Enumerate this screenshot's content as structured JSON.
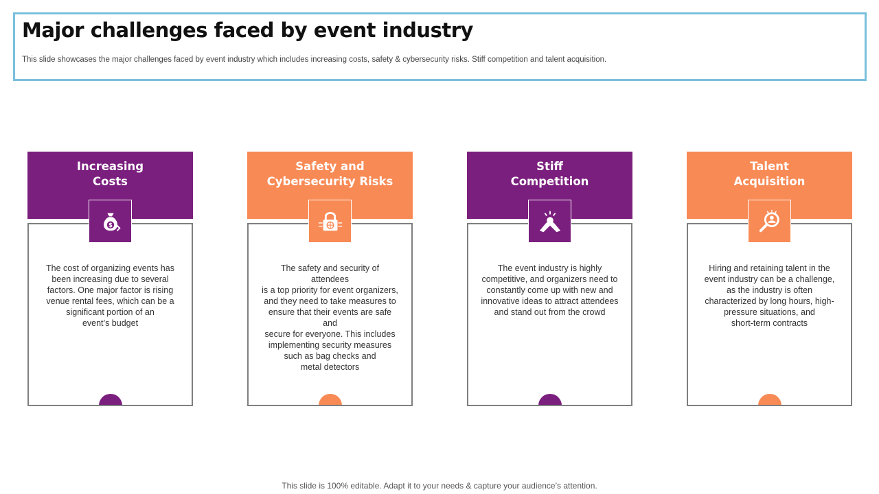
{
  "header": {
    "title": "Major challenges faced by event industry",
    "subtitle": "This slide showcases the major challenges faced by event industry which includes increasing costs, safety & cybersecurity risks. Stiff competition and talent acquisition."
  },
  "colors": {
    "purple": "#7b1f7e",
    "orange": "#f88a55",
    "header_border": "#7ac0dc"
  },
  "cards": [
    {
      "title": "Increasing\nCosts",
      "icon": "money-bag-icon",
      "text": "The cost of organizing events has\nbeen increasing due to several\nfactors. One major factor is rising\nvenue  rental fees, which can be a\nsignificant portion of an\nevent’s budget"
    },
    {
      "title": "Safety and\nCybersecurity Risks",
      "icon": "padlock-icon",
      "text": "The safety and security of attendees\nis a top priority for event organizers,\nand they need to take measures to\nensure that their events  are safe and\nsecure for everyone.  This includes\nimplementing security measures\nsuch as bag checks and\nmetal detectors"
    },
    {
      "title": "Stiff\nCompetition",
      "icon": "arm-wrestling-icon",
      "text": "The event industry is highly\ncompetitive, and organizers need to\nconstantly come up with new and\ninnovative  ideas to attract attendees\nand stand out from the crowd"
    },
    {
      "title": "Talent\nAcquisition",
      "icon": "talent-search-icon",
      "text": "Hiring and retaining talent in the\nevent industry can be a challenge,\nas the industry is often\ncharacterized by long hours, high-\npressure situations, and\nshort-term contracts"
    }
  ],
  "footer": {
    "note": "This slide is 100% editable. Adapt it to your needs & capture your audience’s attention."
  }
}
